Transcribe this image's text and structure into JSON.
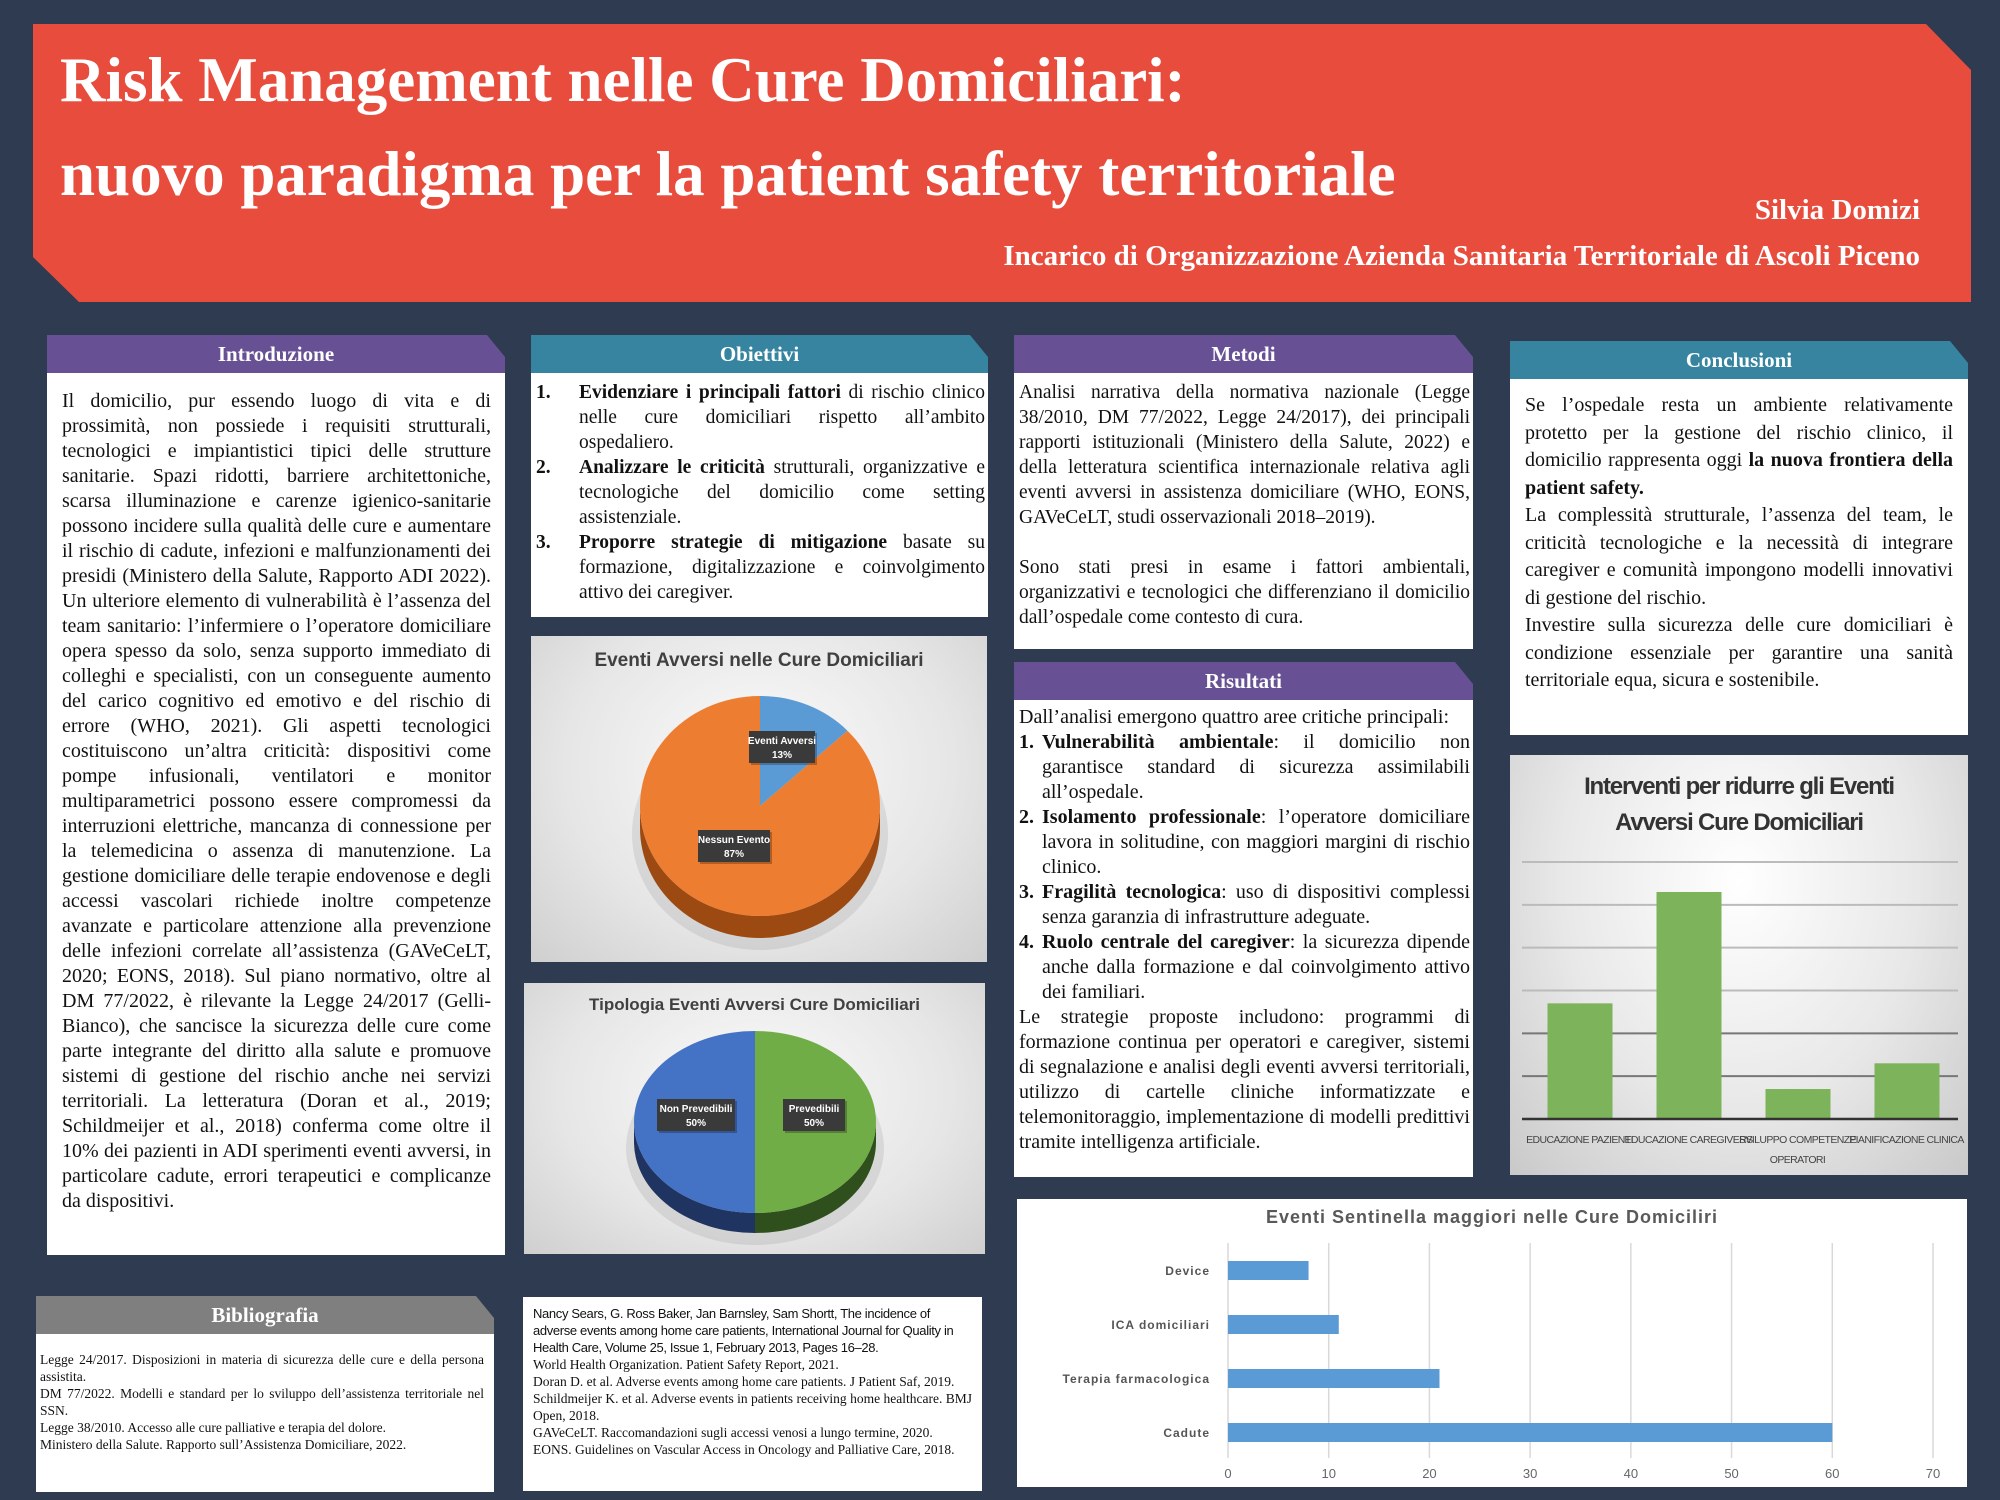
{
  "header": {
    "title_line1": "Risk Management nelle Cure Domiciliari:",
    "title_line2": "nuovo paradigma per la patient safety territoriale",
    "author": "Silvia Domizi",
    "affiliation": "Incarico di Organizzazione Azienda Sanitaria Territoriale di Ascoli Piceno"
  },
  "colors": {
    "background": "#2e3b50",
    "banner": "#e84c3d",
    "purple": "#675194",
    "teal": "#3784a0",
    "grey": "#7f7f7f"
  },
  "introduzione": {
    "heading": "Introduzione",
    "text": "Il domicilio, pur essendo luogo di vita e di prossimità, non possiede i requisiti strutturali, tecnologici e impiantistici tipici delle strutture sanitarie. Spazi ridotti, barriere architettoniche, scarsa illuminazione e carenze igienico-sanitarie possono incidere sulla qualità delle cure e aumentare il rischio di cadute, infezioni e malfunzionamenti dei presidi (Ministero della Salute, Rapporto ADI 2022). Un ulteriore elemento di vulnerabilità è l’assenza del team sanitario: l’infermiere o l’operatore domiciliare opera spesso da solo, senza supporto immediato di colleghi e specialisti, con un conseguente aumento del carico cognitivo ed emotivo e del rischio di errore (WHO, 2021). Gli aspetti tecnologici costituiscono un’altra criticità: dispositivi come pompe infusionali, ventilatori e monitor multiparametrici possono essere compromessi da interruzioni elettriche, mancanza di connessione per la telemedicina o assenza di manutenzione. La gestione domiciliare delle terapie endovenose e degli accessi vascolari richiede inoltre competenze avanzate e particolare attenzione alla prevenzione delle infezioni correlate all’assistenza (GAVeCeLT, 2020; EONS, 2018). Sul piano normativo, oltre al DM 77/2022, è rilevante la Legge 24/2017 (Gelli-Bianco), che sancisce la sicurezza delle cure come parte integrante del diritto alla salute e promuove sistemi di gestione del rischio anche nei servizi territoriali. La letteratura (Doran et al., 2019; Schildmeijer et al., 2018) conferma come oltre il 10% dei pazienti in ADI sperimenti eventi avversi, in particolare cadute, errori terapeutici e complicanze da dispositivi."
  },
  "obiettivi": {
    "heading": "Obiettivi",
    "items": [
      {
        "num": "1.",
        "bold": "Evidenziare i principali fattori",
        "rest": " di rischio clinico nelle cure domiciliari rispetto all’ambito ospedaliero."
      },
      {
        "num": "2.",
        "bold": "Analizzare le criticità",
        "rest": " strutturali, organizzative e tecnologiche del domicilio come setting assistenziale."
      },
      {
        "num": "3.",
        "bold": "Proporre strategie di mitigazione",
        "rest": " basate su formazione, digitalizzazione e coinvolgimento attivo dei caregiver."
      }
    ]
  },
  "metodi": {
    "heading": "Metodi",
    "p1": "Analisi narrativa della normativa nazionale (Legge 38/2010, DM 77/2022, Legge 24/2017), dei principali rapporti istituzionali (Ministero della Salute, 2022) e della letteratura scientifica internazionale relativa agli eventi avversi in assistenza domiciliare (WHO, EONS, GAVeCeLT, studi osservazionali 2018–2019).",
    "p2": "Sono stati presi in esame i fattori ambientali, organizzativi e tecnologici che differenziano il domicilio dall’ospedale come contesto di cura."
  },
  "risultati": {
    "heading": "Risultati",
    "intro": "Dall’analisi emergono quattro aree critiche principali:",
    "items": [
      {
        "num": "1.",
        "bold": "Vulnerabilità ambientale",
        "rest": ": il domicilio non garantisce standard di sicurezza assimilabili all’ospedale."
      },
      {
        "num": "2.",
        "bold": "Isolamento professionale",
        "rest": ": l’operatore domiciliare lavora in solitudine, con maggiori margini di rischio clinico."
      },
      {
        "num": "3.",
        "bold": "Fragilità tecnologica",
        "rest": ": uso di dispositivi complessi senza garanzia di infrastrutture adeguate."
      },
      {
        "num": "4.",
        "bold": "Ruolo centrale del caregiver",
        "rest": ": la sicurezza dipende anche dalla formazione e dal coinvolgimento attivo dei familiari."
      }
    ],
    "outro": "Le strategie proposte includono: programmi di formazione continua per operatori e caregiver, sistemi di segnalazione e analisi degli eventi avversi territoriali, utilizzo di cartelle cliniche informatizzate e telemonitoraggio, implementazione di modelli predittivi tramite intelligenza artificiale."
  },
  "conclusioni": {
    "heading": "Conclusioni",
    "p1_normal": "Se l’ospedale resta un ambiente relativamente protetto per la gestione del rischio clinico, il domicilio rappresenta oggi ",
    "p1_bold": "la nuova frontiera della patient safety.",
    "p2": "La complessità strutturale, l’assenza del team, le criticità tecnologiche e la necessità di integrare caregiver e comunità impongono modelli innovativi di gestione del rischio.",
    "p3": "Investire sulla sicurezza delle cure domiciliari è condizione essenziale per garantire una sanità territoriale equa, sicura e sostenibile."
  },
  "bibliografia": {
    "heading": "Bibliografia",
    "refs_left": [
      "Legge 24/2017. Disposizioni in materia di sicurezza delle cure e della persona assistita.",
      "DM 77/2022. Modelli e standard per lo sviluppo dell’assistenza territoriale nel SSN.",
      "Legge 38/2010. Accesso alle cure palliative e terapia del dolore.",
      "Ministero della Salute. Rapporto sull’Assistenza Domiciliare, 2022."
    ],
    "refs_right": [
      "Nancy Sears, G. Ross Baker, Jan Barnsley, Sam Shortt, The incidence of adverse events among home care patients, International Journal for Quality in Health Care, Volume 25, Issue 1, February 2013, Pages 16–28.",
      "World Health Organization. Patient Safety Report, 2021.",
      "Doran D. et al. Adverse events among home care patients. J Patient Saf, 2019.",
      "Schildmeijer K. et al. Adverse events in patients receiving home healthcare. BMJ Open, 2018.",
      "GAVeCeLT. Raccomandazioni sugli accessi venosi a lungo termine, 2020.",
      "EONS. Guidelines on Vascular Access in Oncology and Palliative Care, 2018."
    ]
  },
  "chart_data": [
    {
      "type": "pie",
      "title": "Eventi Avversi nelle Cure Domiciliari",
      "slices": [
        {
          "label": "Eventi Avversi",
          "value": 13,
          "pct_label": "13%",
          "color": "#5b9bd5",
          "side": "#2f5f8f"
        },
        {
          "label": "Nessun Evento",
          "value": 87,
          "pct_label": "87%",
          "color": "#ed7d31",
          "side": "#9c4a12"
        }
      ]
    },
    {
      "type": "pie",
      "title": "Tipologia Eventi Avversi Cure Domiciliari",
      "slices": [
        {
          "label": "Prevedibili",
          "value": 50,
          "pct_label": "50%",
          "color": "#70ad47",
          "side": "#2f4f1c"
        },
        {
          "label": "Non Prevedibili",
          "value": 50,
          "pct_label": "50%",
          "color": "#4472c4",
          "side": "#1f3460"
        }
      ]
    },
    {
      "type": "bar",
      "title": "Interventi per ridurre gli Eventi Avversi Cure Domiciliari",
      "categories": [
        "EDUCAZIONE PAZIENTI",
        "EDUCAZIONE CAREGIVERS",
        "SVILUPPO COMPETENZE OPERATORI",
        "PIANIFICAZIONE CLINICA"
      ],
      "values": [
        2.7,
        5.3,
        0.7,
        1.3
      ],
      "ylim": [
        0,
        6
      ],
      "grid": true,
      "color": "#7db35a"
    },
    {
      "type": "bar",
      "orientation": "horizontal",
      "title": "Eventi Sentinella maggiori nelle Cure Domiciliri",
      "categories": [
        "Device",
        "ICA domiciliari",
        "Terapia farmacologica",
        "Cadute"
      ],
      "values": [
        8,
        11,
        21,
        60
      ],
      "xlim": [
        0,
        70
      ],
      "xticks": [
        "0",
        "10",
        "20",
        "30",
        "40",
        "50",
        "60",
        "70"
      ],
      "grid": true,
      "color": "#5b9bd5"
    }
  ]
}
